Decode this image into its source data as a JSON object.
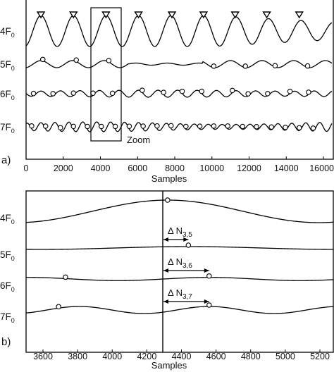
{
  "panel_a": {
    "tag": "a)",
    "x_title": "Samples",
    "zoom_label": "Zoom",
    "x_ticks": [
      "0",
      "2000",
      "4000",
      "6000",
      "8000",
      "10000",
      "12000",
      "14000",
      "16000"
    ],
    "rows": [
      {
        "label": "4F",
        "sub": "0",
        "marker": "triangle-down",
        "markers_x": [
          800,
          2550,
          4300,
          6050,
          7850,
          9550,
          11250,
          12950,
          14700
        ]
      },
      {
        "label": "5F",
        "sub": "0",
        "marker": "circle",
        "markers_x": [
          900,
          2700,
          4450,
          10100,
          11800,
          13400,
          15150
        ]
      },
      {
        "label": "6F",
        "sub": "0",
        "marker": "circle",
        "markers_x": [
          400,
          1450,
          2550,
          3600,
          4650,
          6250,
          7400,
          8400,
          9450,
          11100,
          11950,
          13000,
          14200,
          15200
        ]
      },
      {
        "label": "7F",
        "sub": "0",
        "marker": "circle",
        "markers_x": [
          300,
          1050,
          1850,
          2550,
          3300,
          4050,
          4800,
          5550,
          6300,
          7050,
          7800,
          8600,
          9350,
          10100,
          10850,
          11650,
          12400,
          13200,
          13950,
          14700,
          15450
        ]
      }
    ]
  },
  "panel_b": {
    "tag": "b)",
    "x_title": "Samples",
    "x_ticks": [
      "3600",
      "3800",
      "4000",
      "4200",
      "4400",
      "4600",
      "4800",
      "5000",
      "5200"
    ],
    "annotations": [
      {
        "label": "Δ N",
        "sub": "3,5"
      },
      {
        "label": "Δ N",
        "sub": "3,6"
      },
      {
        "label": "Δ N",
        "sub": "3,7"
      }
    ],
    "rows": [
      {
        "label": "4F",
        "sub": "0",
        "markers_x": [
          4320
        ]
      },
      {
        "label": "5F",
        "sub": "0",
        "markers_x": [
          4440
        ]
      },
      {
        "label": "6F",
        "sub": "0",
        "markers_x": [
          3730,
          4560
        ]
      },
      {
        "label": "7F",
        "sub": "0",
        "markers_x": [
          3690,
          4560
        ]
      }
    ]
  }
}
